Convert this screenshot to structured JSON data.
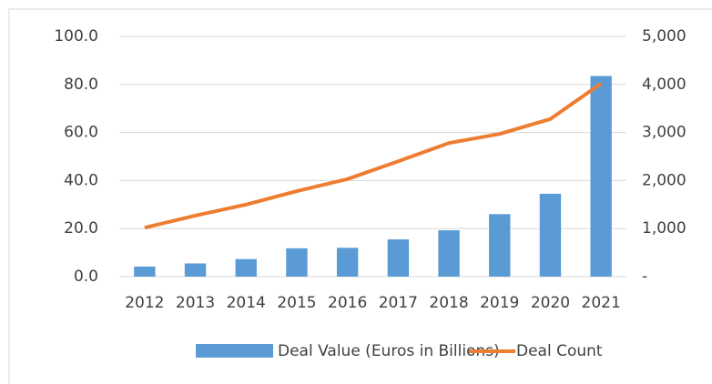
{
  "chart_data": {
    "type": "bar_line",
    "categories": [
      "2012",
      "2013",
      "2014",
      "2015",
      "2016",
      "2017",
      "2018",
      "2019",
      "2020",
      "2021"
    ],
    "series": [
      {
        "name": "Deal Value (Euros in Billions)",
        "type": "bar",
        "color": "#5b9bd5",
        "values": [
          4.2,
          5.5,
          7.3,
          11.8,
          12.0,
          15.5,
          19.3,
          26.0,
          34.5,
          83.5
        ]
      },
      {
        "name": "Deal Count",
        "type": "line",
        "axis": "y2",
        "color": "#ed7d31",
        "values": [
          1020,
          1270,
          1500,
          1780,
          2030,
          2400,
          2780,
          2970,
          3280,
          4020
        ]
      }
    ],
    "ylim": [
      0,
      100
    ],
    "yticks": [
      {
        "value": 0,
        "label": "0.0"
      },
      {
        "value": 20,
        "label": "20.0"
      },
      {
        "value": 40,
        "label": "40.0"
      },
      {
        "value": 60,
        "label": "60.0"
      },
      {
        "value": 80,
        "label": "80.0"
      },
      {
        "value": 100,
        "label": "100.0"
      }
    ],
    "y2lim": [
      0,
      5000
    ],
    "y2ticks": [
      {
        "value": 0,
        "label": "-"
      },
      {
        "value": 1000,
        "label": "1,000"
      },
      {
        "value": 2000,
        "label": "2,000"
      },
      {
        "value": 3000,
        "label": "3,000"
      },
      {
        "value": 4000,
        "label": "4,000"
      },
      {
        "value": 5000,
        "label": "5,000"
      }
    ],
    "grid": true,
    "legend": "bottom"
  }
}
